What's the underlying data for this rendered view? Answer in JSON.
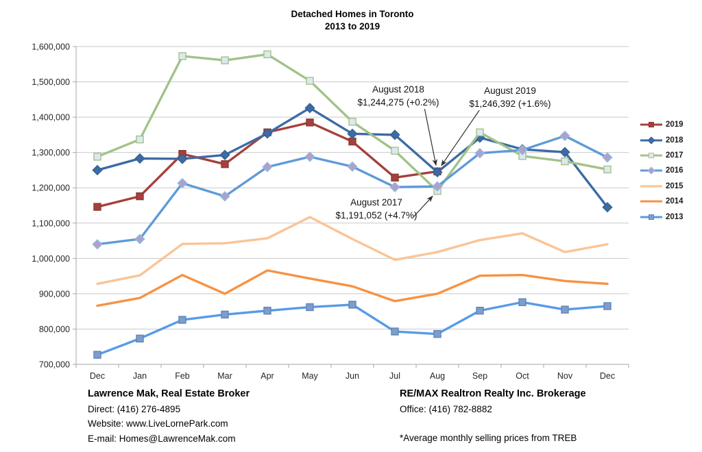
{
  "title": {
    "line1": "Detached Homes in Toronto",
    "line2": "2013 to 2019"
  },
  "chart_data": {
    "type": "line",
    "title": "Detached Homes in Toronto 2013 to 2019",
    "xlabel": "",
    "ylabel": "",
    "grid": true,
    "legend_position": "right",
    "categories": [
      "Dec",
      "Jan",
      "Feb",
      "Mar",
      "Apr",
      "May",
      "Jun",
      "Jul",
      "Aug",
      "Sep",
      "Oct",
      "Nov",
      "Dec"
    ],
    "y_axis": {
      "min": 700000,
      "max": 1600000,
      "step": 100000
    },
    "series": [
      {
        "name": "2019",
        "color": "#A4413C",
        "marker": "square",
        "marker_fill": "#A4413C",
        "marker_stroke": "#8E3835",
        "values": [
          1146000,
          1176000,
          1296000,
          1267000,
          1357000,
          1385000,
          1331000,
          1229000,
          1246392
        ]
      },
      {
        "name": "2018",
        "color": "#3C6BA5",
        "marker": "diamond",
        "marker_fill": "#3C6BA5",
        "marker_stroke": "#36608F",
        "values": [
          1250000,
          1283000,
          1282000,
          1293000,
          1354000,
          1426000,
          1353000,
          1350000,
          1244275,
          1342000,
          1309000,
          1301000,
          1145000
        ]
      },
      {
        "name": "2017",
        "color": "#A3C289",
        "marker": "square",
        "marker_fill": "#DDE8F1",
        "marker_stroke": "#A3C289",
        "values": [
          1288000,
          1337000,
          1573000,
          1561000,
          1578000,
          1503000,
          1387000,
          1305000,
          1191052,
          1357000,
          1290000,
          1275000,
          1252000
        ]
      },
      {
        "name": "2016",
        "color": "#5E9BD8",
        "marker": "diamond",
        "marker_fill": "#B1A0C7",
        "marker_stroke": "#90B9E4",
        "values": [
          1040000,
          1055000,
          1213000,
          1176000,
          1259000,
          1288000,
          1260000,
          1202000,
          1204000,
          1298000,
          1307000,
          1347000,
          1286000
        ]
      },
      {
        "name": "2015",
        "color": "#FAC496",
        "marker": "none",
        "values": [
          928000,
          952000,
          1041000,
          1043000,
          1057000,
          1117000,
          1055000,
          996000,
          1018000,
          1052000,
          1071000,
          1018000,
          1040000
        ]
      },
      {
        "name": "2014",
        "color": "#F79243",
        "marker": "none",
        "values": [
          866000,
          888000,
          953000,
          900000,
          966000,
          943000,
          921000,
          879000,
          900000,
          951000,
          953000,
          936000,
          928000
        ]
      },
      {
        "name": "2013",
        "color": "#569BE8",
        "marker": "square",
        "marker_fill": "#7E9DCB",
        "marker_stroke": "#5E85B8",
        "values": [
          727000,
          773000,
          826000,
          841000,
          852000,
          862000,
          869000,
          793000,
          786000,
          852000,
          876000,
          855000,
          865000
        ]
      }
    ]
  },
  "annotations": [
    {
      "id": "aug2018",
      "line1": "August 2018",
      "line2": "$1,244,275 (+0.2%)",
      "target_series": "2018",
      "target_index": 8
    },
    {
      "id": "aug2019",
      "line1": "August 2019",
      "line2": "$1,246,392 (+1.6%)",
      "target_series": "2019",
      "target_index": 8
    },
    {
      "id": "aug2017",
      "line1": "August 2017",
      "line2": "$1,191,052 (+4.7%)",
      "target_series": "2017",
      "target_index": 8
    }
  ],
  "footer_left": {
    "title": "Lawrence Mak, Real Estate Broker",
    "direct_line": "Direct:  (416) 276-4895",
    "website_line": "Website:  www.LiveLornePark.com",
    "email_line": "E-mail:  Homes@LawrenceMak.com"
  },
  "footer_right": {
    "title": "RE/MAX Realtron Realty Inc. Brokerage",
    "office_line": "Office: (416) 782-8882",
    "note": "*Average monthly selling prices from TREB"
  }
}
